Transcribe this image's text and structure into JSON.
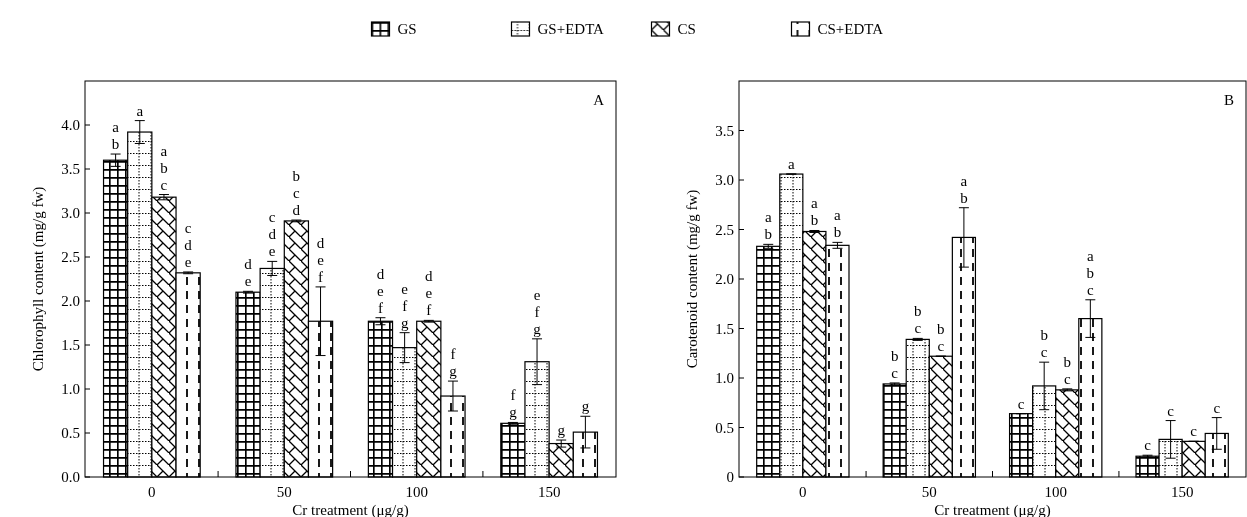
{
  "chart_data": [
    {
      "type": "bar",
      "xlabel": "Cr treatment (μg/g)",
      "ylabel": "Chlorophyll content (mg/g fw)",
      "categories": [
        "0",
        "50",
        "100",
        "150"
      ],
      "ylim": [
        0,
        4.5
      ],
      "yticks": [
        {
          "value": 0,
          "label": "0.0"
        },
        0.5,
        {
          "value": 1,
          "label": "1.0"
        },
        1.5,
        {
          "value": 2,
          "label": "2.0"
        },
        2.5,
        {
          "value": 3,
          "label": "3.0"
        },
        3.5,
        {
          "value": 4,
          "label": "4.0"
        }
      ],
      "legend": "top",
      "series": [
        {
          "name": "GS",
          "color": "#000000",
          "values": [
            3.6,
            2.1,
            1.77,
            0.61
          ],
          "errors": [
            0.07,
            0.01,
            0.04,
            0.01
          ]
        },
        {
          "name": "GS+EDTA",
          "color": "#000000",
          "values": [
            3.92,
            2.37,
            1.47,
            1.31
          ],
          "errors": [
            0.13,
            0.08,
            0.17,
            0.26
          ]
        },
        {
          "name": "CS",
          "color": "#000000",
          "values": [
            3.18,
            2.91,
            1.77,
            0.38
          ],
          "errors": [
            0.03,
            0.01,
            0.01,
            0.04
          ]
        },
        {
          "name": "CS+EDTA",
          "color": "#000000",
          "values": [
            2.32,
            1.77,
            0.92,
            0.51
          ],
          "errors": [
            0.01,
            0.39,
            0.17,
            0.18
          ]
        }
      ],
      "annotations": [
        "ab",
        "a",
        "abc",
        "cde",
        "de",
        "cde",
        "bcd",
        "def",
        "def",
        "efg",
        "def",
        "fg",
        "fg",
        "efg",
        "g",
        "g",
        "A"
      ]
    },
    {
      "type": "bar",
      "xlabel": "Cr treatment (μg/g)",
      "ylabel": "Carotenoid content (mg/g fw)",
      "categories": [
        "0",
        "50",
        "100",
        "150"
      ],
      "ylim": [
        0,
        4.0
      ],
      "yticks": [
        0,
        0.5,
        {
          "value": 1,
          "label": "1.0"
        },
        1.5,
        {
          "value": 2,
          "label": "2.0"
        },
        2.5,
        {
          "value": 3,
          "label": "3.0"
        },
        3.5
      ],
      "series": [
        {
          "name": "GS",
          "color": "#000000",
          "values": [
            2.33,
            0.94,
            0.64,
            0.21
          ],
          "errors": [
            0.02,
            0.01,
            0,
            0.01
          ]
        },
        {
          "name": "GS+EDTA",
          "color": "#000000",
          "values": [
            3.06,
            1.39,
            0.92,
            0.38
          ],
          "errors": [
            0,
            0.01,
            0.24,
            0.19
          ]
        },
        {
          "name": "CS",
          "color": "#000000",
          "values": [
            2.48,
            1.22,
            0.88,
            0.36
          ],
          "errors": [
            0.01,
            0,
            0.01,
            0
          ]
        },
        {
          "name": "CS+EDTA",
          "color": "#000000",
          "values": [
            2.34,
            2.42,
            1.6,
            0.44
          ],
          "errors": [
            0.03,
            0.3,
            0.19,
            0.16
          ]
        }
      ],
      "annotations": [
        "ab",
        "a",
        "ab",
        "ab",
        "bc",
        "bc",
        "bc",
        "ab",
        "c",
        "bc",
        "bc",
        "abc",
        "c",
        "c",
        "c",
        "c",
        "B"
      ]
    }
  ]
}
